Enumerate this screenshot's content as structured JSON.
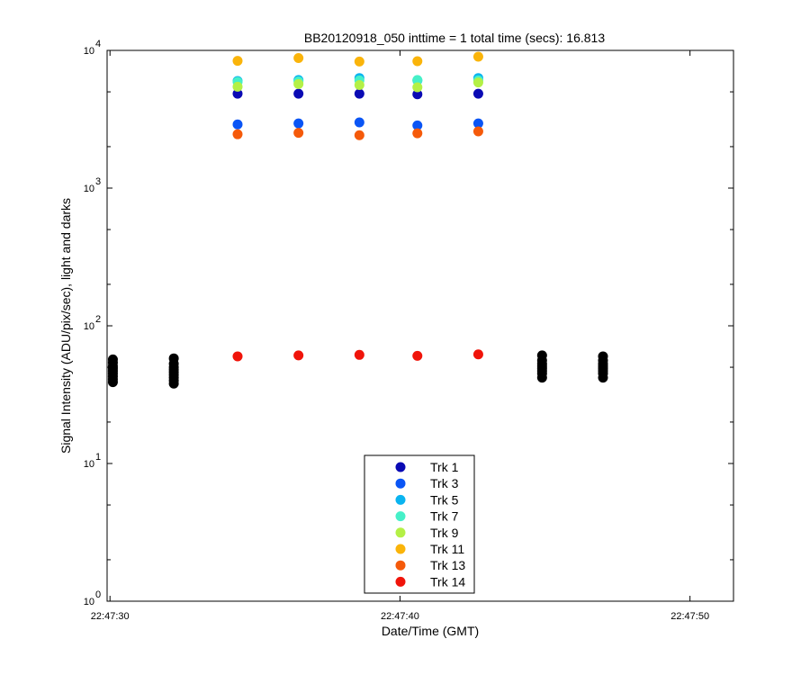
{
  "chart_data": {
    "type": "scatter",
    "title": "BB20120918_050 inttime = 1 total time (secs): 16.813",
    "xlabel": "Date/Time (GMT)",
    "ylabel": "Signal Intensity (ADU/pix/sec), light and darks",
    "x_axis": {
      "unit": "seconds after 22:47:30",
      "range": [
        -0.1,
        21.5
      ],
      "ticks": [
        {
          "value": 0,
          "label": "22:47:30"
        },
        {
          "value": 10,
          "label": "22:47:40"
        },
        {
          "value": 20,
          "label": "22:47:50"
        }
      ]
    },
    "y_axis": {
      "scale": "log",
      "range": [
        1,
        10000
      ],
      "ticks": [
        {
          "value": 1,
          "base": "10",
          "exp": "0"
        },
        {
          "value": 10,
          "base": "10",
          "exp": "1"
        },
        {
          "value": 100,
          "base": "10",
          "exp": "2"
        },
        {
          "value": 1000,
          "base": "10",
          "exp": "3"
        },
        {
          "value": 10000,
          "base": "10",
          "exp": "4"
        }
      ]
    },
    "grid": false,
    "legend_position": "bottom-center",
    "series": [
      {
        "name": "Trk 1",
        "color": "#0a0ab4",
        "x": [
          4.4,
          6.5,
          8.6,
          10.6,
          12.7
        ],
        "y": [
          4850,
          4850,
          4850,
          4800,
          4850
        ]
      },
      {
        "name": "Trk 3",
        "color": "#0a55f5",
        "x": [
          4.4,
          6.5,
          8.6,
          10.6,
          12.7
        ],
        "y": [
          2900,
          2950,
          3000,
          2850,
          2950
        ]
      },
      {
        "name": "Trk 5",
        "color": "#0ab4f0",
        "x": [
          4.4,
          6.5,
          8.6,
          10.6,
          12.7
        ],
        "y": [
          6000,
          6100,
          6300,
          6050,
          6300
        ]
      },
      {
        "name": "Trk 7",
        "color": "#46f0c8",
        "x": [
          4.4,
          6.5,
          8.6,
          10.6,
          12.7
        ],
        "y": [
          5900,
          5950,
          6050,
          6100,
          6050
        ]
      },
      {
        "name": "Trk 9",
        "color": "#b4f046",
        "x": [
          4.4,
          6.5,
          8.6,
          10.6,
          12.7
        ],
        "y": [
          5450,
          5700,
          5600,
          5400,
          5850
        ]
      },
      {
        "name": "Trk 11",
        "color": "#fab40a",
        "x": [
          4.4,
          6.5,
          8.6,
          10.6,
          12.7
        ],
        "y": [
          8400,
          8800,
          8300,
          8350,
          9000
        ]
      },
      {
        "name": "Trk 13",
        "color": "#f55a0a",
        "x": [
          4.4,
          6.5,
          8.6,
          10.6,
          12.7
        ],
        "y": [
          2460,
          2520,
          2420,
          2500,
          2580
        ]
      },
      {
        "name": "Trk 14",
        "color": "#f0140a",
        "x": [
          4.4,
          6.5,
          8.6,
          10.6,
          12.7
        ],
        "y": [
          60,
          61,
          61.5,
          60.5,
          62
        ]
      }
    ],
    "dark_frames": {
      "color": "#000000",
      "points": [
        {
          "x": 0.1,
          "y": 39
        },
        {
          "x": 0.1,
          "y": 41
        },
        {
          "x": 0.1,
          "y": 43
        },
        {
          "x": 0.1,
          "y": 45
        },
        {
          "x": 0.1,
          "y": 47
        },
        {
          "x": 0.1,
          "y": 49
        },
        {
          "x": 0.1,
          "y": 51
        },
        {
          "x": 0.1,
          "y": 54
        },
        {
          "x": 0.1,
          "y": 57
        },
        {
          "x": 2.2,
          "y": 38
        },
        {
          "x": 2.2,
          "y": 40
        },
        {
          "x": 2.2,
          "y": 42
        },
        {
          "x": 2.2,
          "y": 44
        },
        {
          "x": 2.2,
          "y": 46
        },
        {
          "x": 2.2,
          "y": 48
        },
        {
          "x": 2.2,
          "y": 50
        },
        {
          "x": 2.2,
          "y": 53
        },
        {
          "x": 2.2,
          "y": 58
        },
        {
          "x": 14.9,
          "y": 42
        },
        {
          "x": 14.9,
          "y": 45
        },
        {
          "x": 14.9,
          "y": 47
        },
        {
          "x": 14.9,
          "y": 49
        },
        {
          "x": 14.9,
          "y": 51
        },
        {
          "x": 14.9,
          "y": 53
        },
        {
          "x": 14.9,
          "y": 56
        },
        {
          "x": 14.9,
          "y": 61
        },
        {
          "x": 17.0,
          "y": 42
        },
        {
          "x": 17.0,
          "y": 45
        },
        {
          "x": 17.0,
          "y": 47
        },
        {
          "x": 17.0,
          "y": 49
        },
        {
          "x": 17.0,
          "y": 51
        },
        {
          "x": 17.0,
          "y": 53
        },
        {
          "x": 17.0,
          "y": 56
        },
        {
          "x": 17.0,
          "y": 60
        }
      ]
    }
  }
}
